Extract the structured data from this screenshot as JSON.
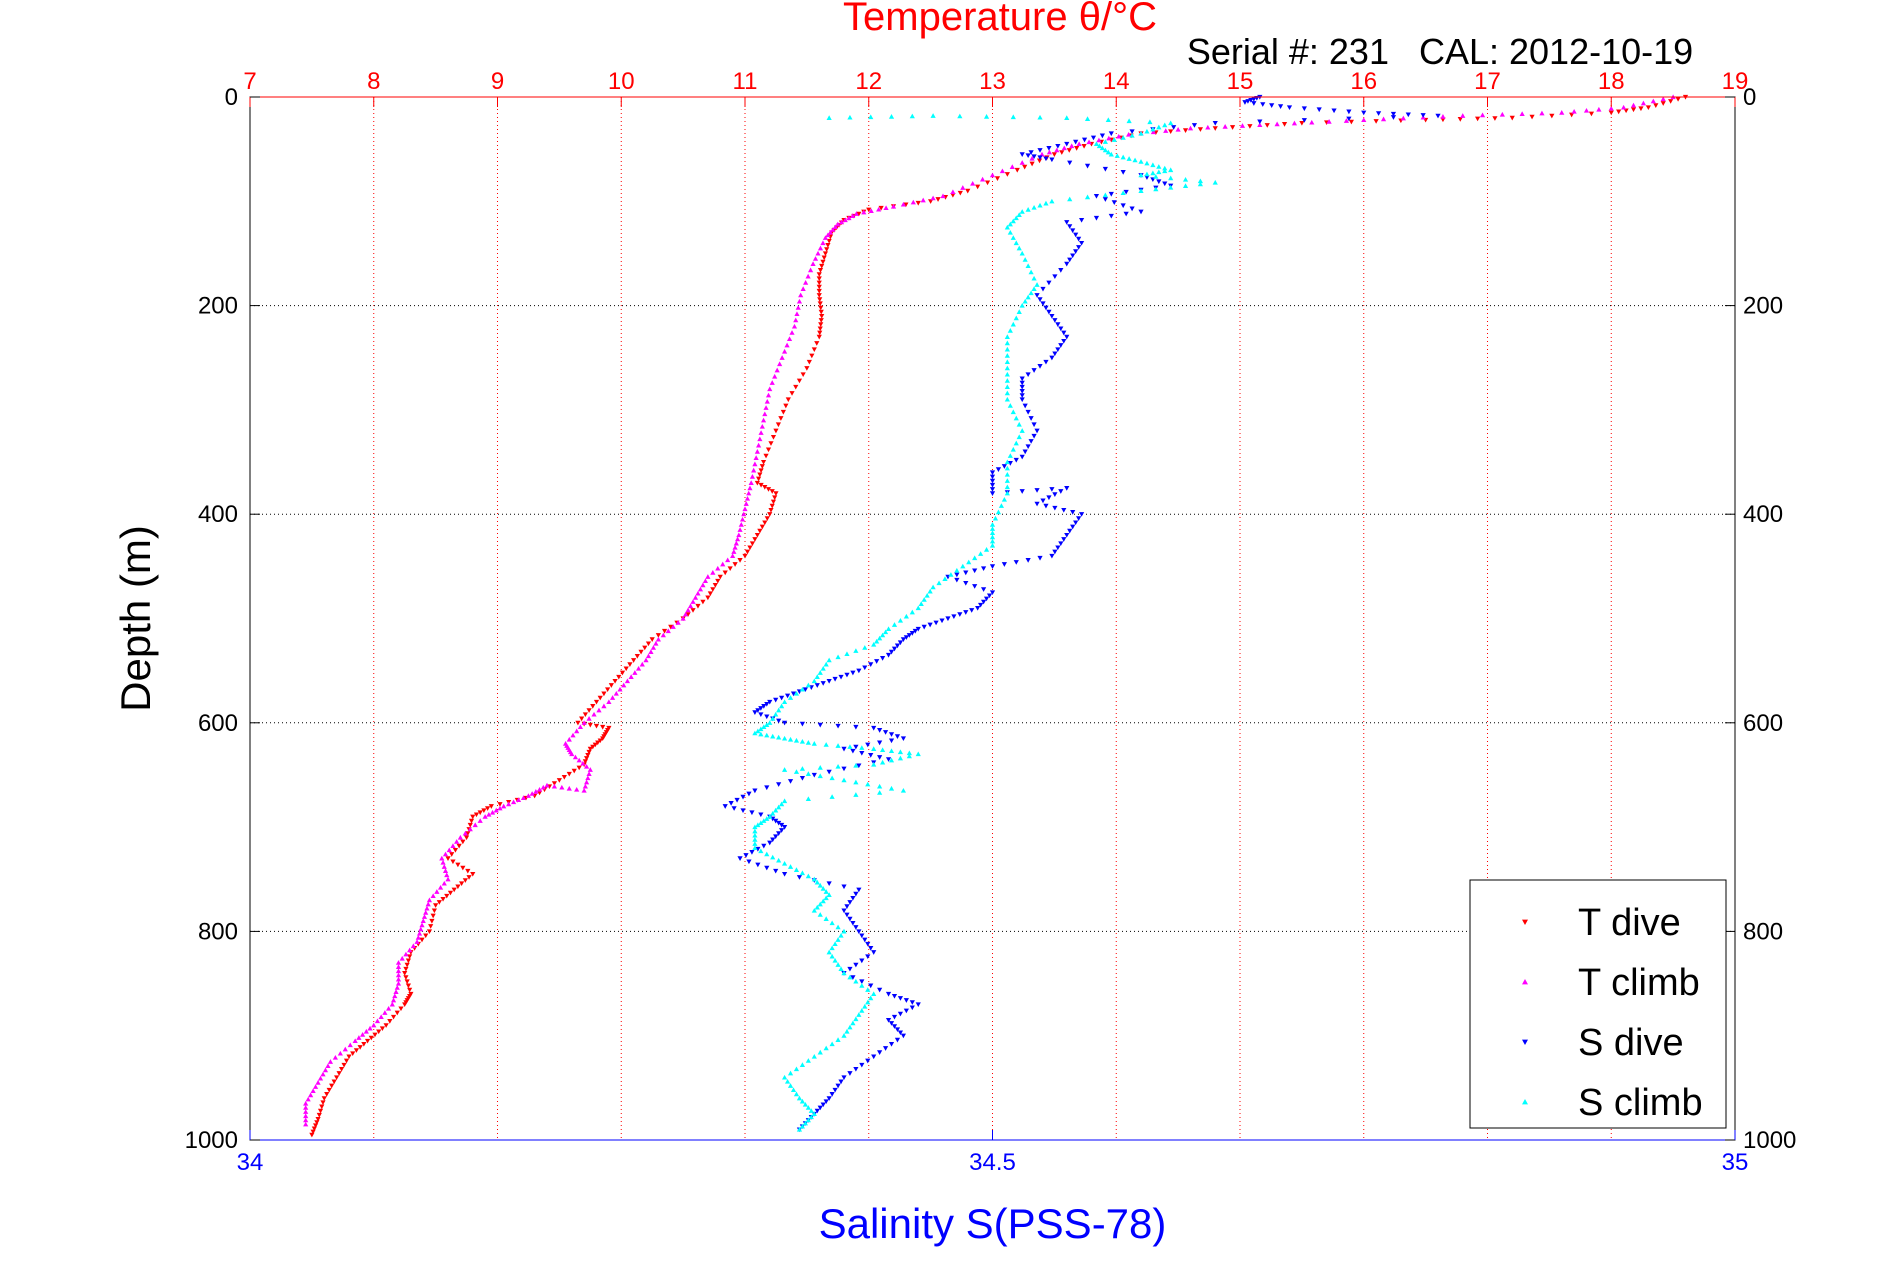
{
  "chart_data": {
    "type": "scatter",
    "title": "Temperature θ/°C",
    "subtitle": "Serial #: 231   CAL: 2012-10-19",
    "ylabel": "Depth (m)",
    "xlabel": "Salinity S(PSS-78)",
    "ylim": [
      0,
      1000
    ],
    "y_reversed": true,
    "y_ticks": [
      "0",
      "200",
      "400",
      "600",
      "800",
      "1000"
    ],
    "temp_axis": {
      "position": "top",
      "range": [
        7,
        19
      ],
      "ticks": [
        "7",
        "8",
        "9",
        "10",
        "11",
        "12",
        "13",
        "14",
        "15",
        "16",
        "17",
        "18",
        "19"
      ],
      "color": "#ff0000"
    },
    "sal_axis": {
      "position": "bottom",
      "range": [
        34,
        35
      ],
      "ticks": [
        "34",
        "34.5",
        "35"
      ],
      "color": "#0000ff"
    },
    "grid": true,
    "legend_position": "bottom-right",
    "series": [
      {
        "name": "T dive",
        "axis": "temperature",
        "color": "#ff0000",
        "marker": "triangle-down",
        "points": [
          [
            18.6,
            0
          ],
          [
            18.3,
            10
          ],
          [
            18.0,
            15
          ],
          [
            17.2,
            20
          ],
          [
            16.5,
            22
          ],
          [
            15.5,
            25
          ],
          [
            14.8,
            30
          ],
          [
            14.2,
            35
          ],
          [
            13.8,
            45
          ],
          [
            13.5,
            55
          ],
          [
            13.2,
            70
          ],
          [
            12.8,
            90
          ],
          [
            12.5,
            100
          ],
          [
            12.0,
            108
          ],
          [
            11.8,
            118
          ],
          [
            11.7,
            130
          ],
          [
            11.65,
            150
          ],
          [
            11.6,
            170
          ],
          [
            11.6,
            190
          ],
          [
            11.62,
            210
          ],
          [
            11.6,
            230
          ],
          [
            11.5,
            260
          ],
          [
            11.35,
            290
          ],
          [
            11.25,
            320
          ],
          [
            11.15,
            350
          ],
          [
            11.1,
            370
          ],
          [
            11.25,
            380
          ],
          [
            11.2,
            400
          ],
          [
            11.1,
            420
          ],
          [
            11.0,
            440
          ],
          [
            10.8,
            460
          ],
          [
            10.7,
            480
          ],
          [
            10.5,
            500
          ],
          [
            10.25,
            520
          ],
          [
            10.1,
            540
          ],
          [
            9.95,
            560
          ],
          [
            9.8,
            580
          ],
          [
            9.65,
            600
          ],
          [
            9.9,
            605
          ],
          [
            9.85,
            615
          ],
          [
            9.75,
            625
          ],
          [
            9.7,
            640
          ],
          [
            9.5,
            655
          ],
          [
            9.3,
            670
          ],
          [
            8.95,
            680
          ],
          [
            8.8,
            690
          ],
          [
            8.75,
            710
          ],
          [
            8.6,
            730
          ],
          [
            8.8,
            745
          ],
          [
            8.65,
            760
          ],
          [
            8.5,
            775
          ],
          [
            8.45,
            800
          ],
          [
            8.3,
            820
          ],
          [
            8.25,
            840
          ],
          [
            8.3,
            860
          ],
          [
            8.25,
            870
          ],
          [
            8.1,
            890
          ],
          [
            7.95,
            905
          ],
          [
            7.8,
            920
          ],
          [
            7.7,
            940
          ],
          [
            7.6,
            960
          ],
          [
            7.55,
            980
          ],
          [
            7.5,
            995
          ]
        ]
      },
      {
        "name": "T climb",
        "axis": "temperature",
        "color": "#ff00ff",
        "marker": "triangle-up",
        "points": [
          [
            18.5,
            0
          ],
          [
            18.1,
            10
          ],
          [
            17.6,
            15
          ],
          [
            16.8,
            18
          ],
          [
            16.0,
            22
          ],
          [
            15.3,
            26
          ],
          [
            14.6,
            30
          ],
          [
            14.1,
            36
          ],
          [
            13.7,
            45
          ],
          [
            13.4,
            55
          ],
          [
            13.0,
            75
          ],
          [
            12.6,
            95
          ],
          [
            12.2,
            105
          ],
          [
            11.9,
            112
          ],
          [
            11.75,
            122
          ],
          [
            11.65,
            135
          ],
          [
            11.55,
            160
          ],
          [
            11.45,
            190
          ],
          [
            11.4,
            220
          ],
          [
            11.3,
            250
          ],
          [
            11.2,
            280
          ],
          [
            11.15,
            310
          ],
          [
            11.1,
            340
          ],
          [
            11.05,
            370
          ],
          [
            11.0,
            395
          ],
          [
            10.95,
            420
          ],
          [
            10.9,
            440
          ],
          [
            10.7,
            460
          ],
          [
            10.6,
            480
          ],
          [
            10.5,
            500
          ],
          [
            10.3,
            520
          ],
          [
            10.2,
            540
          ],
          [
            10.05,
            560
          ],
          [
            9.9,
            580
          ],
          [
            9.7,
            600
          ],
          [
            9.55,
            620
          ],
          [
            9.6,
            630
          ],
          [
            9.75,
            645
          ],
          [
            9.7,
            665
          ],
          [
            9.4,
            660
          ],
          [
            9.25,
            670
          ],
          [
            9.05,
            680
          ],
          [
            8.9,
            690
          ],
          [
            8.7,
            710
          ],
          [
            8.55,
            730
          ],
          [
            8.6,
            750
          ],
          [
            8.45,
            770
          ],
          [
            8.4,
            790
          ],
          [
            8.35,
            810
          ],
          [
            8.2,
            830
          ],
          [
            8.2,
            850
          ],
          [
            8.15,
            870
          ],
          [
            8.0,
            890
          ],
          [
            7.85,
            905
          ],
          [
            7.65,
            925
          ],
          [
            7.55,
            945
          ],
          [
            7.45,
            965
          ],
          [
            7.45,
            985
          ]
        ]
      },
      {
        "name": "S dive",
        "axis": "salinity",
        "color": "#0000ff",
        "marker": "triangle-down",
        "points": [
          [
            34.68,
            0
          ],
          [
            34.67,
            5
          ],
          [
            34.7,
            10
          ],
          [
            34.75,
            15
          ],
          [
            34.8,
            18
          ],
          [
            34.65,
            25
          ],
          [
            34.58,
            35
          ],
          [
            34.55,
            45
          ],
          [
            34.52,
            55
          ],
          [
            34.54,
            60
          ],
          [
            34.6,
            75
          ],
          [
            34.62,
            85
          ],
          [
            34.57,
            95
          ],
          [
            34.6,
            110
          ],
          [
            34.55,
            120
          ],
          [
            34.56,
            140
          ],
          [
            34.55,
            160
          ],
          [
            34.53,
            190
          ],
          [
            34.54,
            210
          ],
          [
            34.55,
            230
          ],
          [
            34.54,
            250
          ],
          [
            34.52,
            270
          ],
          [
            34.52,
            290
          ],
          [
            34.53,
            320
          ],
          [
            34.52,
            345
          ],
          [
            34.5,
            360
          ],
          [
            34.5,
            380
          ],
          [
            34.55,
            375
          ],
          [
            34.53,
            390
          ],
          [
            34.56,
            400
          ],
          [
            34.55,
            420
          ],
          [
            34.54,
            440
          ],
          [
            34.5,
            450
          ],
          [
            34.47,
            460
          ],
          [
            34.5,
            475
          ],
          [
            34.49,
            490
          ],
          [
            34.47,
            500
          ],
          [
            34.45,
            510
          ],
          [
            34.44,
            520
          ],
          [
            34.43,
            535
          ],
          [
            34.41,
            550
          ],
          [
            34.39,
            560
          ],
          [
            34.37,
            570
          ],
          [
            34.35,
            580
          ],
          [
            34.34,
            590
          ],
          [
            34.36,
            600
          ],
          [
            34.42,
            605
          ],
          [
            34.44,
            615
          ],
          [
            34.4,
            625
          ],
          [
            34.43,
            635
          ],
          [
            34.38,
            650
          ],
          [
            34.34,
            665
          ],
          [
            34.32,
            680
          ],
          [
            34.35,
            690
          ],
          [
            34.36,
            700
          ],
          [
            34.35,
            715
          ],
          [
            34.33,
            730
          ],
          [
            34.36,
            745
          ],
          [
            34.41,
            760
          ],
          [
            34.4,
            780
          ],
          [
            34.41,
            800
          ],
          [
            34.42,
            820
          ],
          [
            34.4,
            840
          ],
          [
            34.43,
            860
          ],
          [
            34.45,
            870
          ],
          [
            34.43,
            885
          ],
          [
            34.44,
            900
          ],
          [
            34.42,
            920
          ],
          [
            34.4,
            940
          ],
          [
            34.39,
            960
          ],
          [
            34.38,
            975
          ],
          [
            34.37,
            990
          ]
        ]
      },
      {
        "name": "S climb",
        "axis": "salinity",
        "color": "#00ffff",
        "marker": "triangle-up",
        "points": [
          [
            34.39,
            20
          ],
          [
            34.46,
            18
          ],
          [
            34.55,
            20
          ],
          [
            34.62,
            25
          ],
          [
            34.6,
            35
          ],
          [
            34.57,
            45
          ],
          [
            34.58,
            55
          ],
          [
            34.6,
            62
          ],
          [
            34.62,
            70
          ],
          [
            34.6,
            75
          ],
          [
            34.65,
            82
          ],
          [
            34.6,
            90
          ],
          [
            34.54,
            100
          ],
          [
            34.52,
            110
          ],
          [
            34.51,
            125
          ],
          [
            34.52,
            150
          ],
          [
            34.53,
            180
          ],
          [
            34.52,
            200
          ],
          [
            34.51,
            230
          ],
          [
            34.51,
            260
          ],
          [
            34.51,
            290
          ],
          [
            34.52,
            320
          ],
          [
            34.51,
            350
          ],
          [
            34.51,
            380
          ],
          [
            34.5,
            410
          ],
          [
            34.5,
            430
          ],
          [
            34.48,
            450
          ],
          [
            34.46,
            470
          ],
          [
            34.45,
            490
          ],
          [
            34.43,
            510
          ],
          [
            34.42,
            525
          ],
          [
            34.39,
            540
          ],
          [
            34.38,
            560
          ],
          [
            34.36,
            580
          ],
          [
            34.35,
            600
          ],
          [
            34.34,
            610
          ],
          [
            34.36,
            615
          ],
          [
            34.38,
            620
          ],
          [
            34.42,
            625
          ],
          [
            34.45,
            630
          ],
          [
            34.42,
            640
          ],
          [
            34.36,
            645
          ],
          [
            34.4,
            655
          ],
          [
            34.44,
            665
          ],
          [
            34.36,
            675
          ],
          [
            34.35,
            690
          ],
          [
            34.34,
            700
          ],
          [
            34.34,
            720
          ],
          [
            34.36,
            735
          ],
          [
            34.38,
            750
          ],
          [
            34.39,
            765
          ],
          [
            34.38,
            780
          ],
          [
            34.4,
            800
          ],
          [
            34.39,
            820
          ],
          [
            34.4,
            840
          ],
          [
            34.42,
            860
          ],
          [
            34.41,
            880
          ],
          [
            34.4,
            900
          ],
          [
            34.38,
            920
          ],
          [
            34.36,
            940
          ],
          [
            34.37,
            960
          ],
          [
            34.38,
            975
          ],
          [
            34.37,
            990
          ]
        ]
      }
    ]
  }
}
